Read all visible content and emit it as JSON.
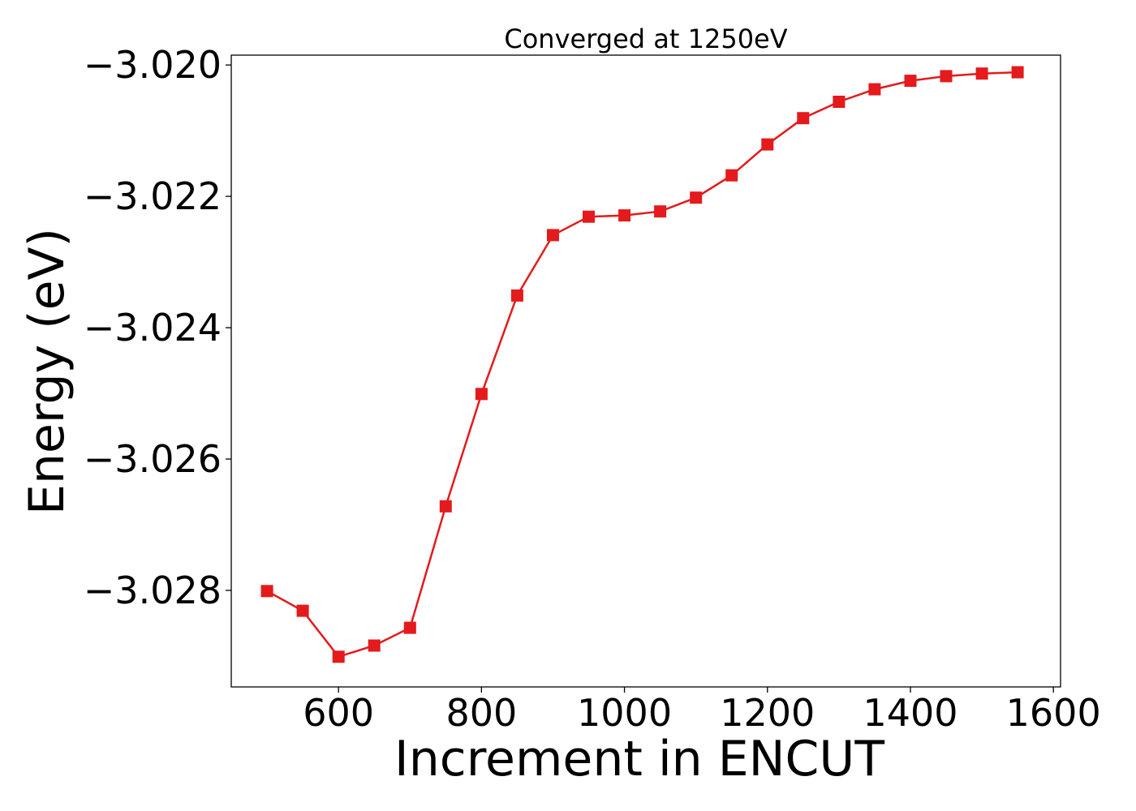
{
  "chart_data": {
    "type": "line",
    "title": "Converged at 1250eV",
    "xlabel": "Increment in ENCUT",
    "ylabel": "Energy (eV)",
    "xlim": [
      450,
      1610
    ],
    "ylim": [
      -3.02947,
      -3.01985
    ],
    "x_ticks": [
      600,
      800,
      1000,
      1200,
      1400,
      1600
    ],
    "x_tick_labels": [
      "600",
      "800",
      "1000",
      "1200",
      "1400",
      "1600"
    ],
    "y_ticks": [
      -3.02,
      -3.022,
      -3.024,
      -3.026,
      -3.028
    ],
    "y_tick_labels": [
      "−3.020",
      "−3.022",
      "−3.024",
      "−3.026",
      "−3.028"
    ],
    "grid": false,
    "color": "#e41a1c",
    "marker": "square",
    "series": [
      {
        "x": [
          500,
          550,
          600,
          650,
          700,
          750,
          800,
          850,
          900,
          950,
          1000,
          1050,
          1100,
          1150,
          1200,
          1250,
          1300,
          1350,
          1400,
          1450,
          1500,
          1550
        ],
        "values": [
          -3.02801,
          -3.02831,
          -3.02901,
          -3.02884,
          -3.02857,
          -3.02672,
          -3.02501,
          -3.02351,
          -3.02259,
          -3.02231,
          -3.02229,
          -3.02223,
          -3.02202,
          -3.02168,
          -3.02121,
          -3.02081,
          -3.02056,
          -3.02037,
          -3.02024,
          -3.02017,
          -3.02013,
          -3.02011
        ]
      }
    ]
  }
}
